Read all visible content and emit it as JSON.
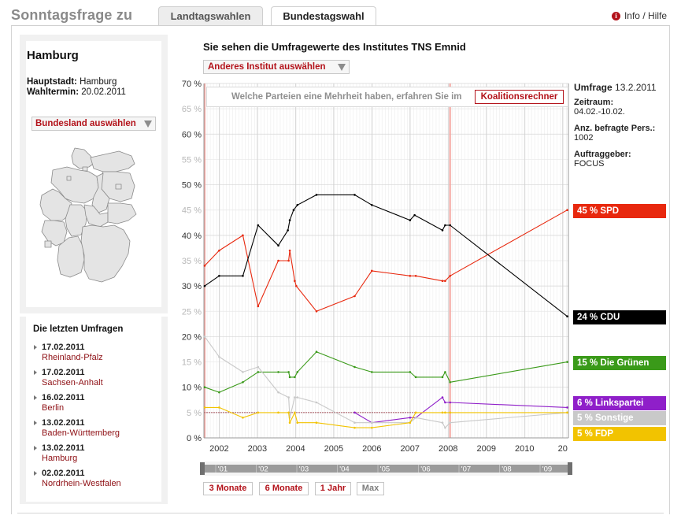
{
  "header": {
    "app_title": "Sonntagsfrage zu",
    "tabs": [
      {
        "label": "Landtagswahlen",
        "active": false
      },
      {
        "label": "Bundestagswahl",
        "active": true
      }
    ],
    "info_link": "Info / Hilfe",
    "info_icon": "i"
  },
  "state": {
    "name": "Hamburg",
    "capital_label": "Hauptstadt:",
    "capital_value": "Hamburg",
    "election_label": "Wahltermin:",
    "election_value": "20.02.2011",
    "select_label": "Bundesland auswählen",
    "map_icon": "germany-map-icon"
  },
  "recent_polls": {
    "title": "Die letzten Umfragen",
    "items": [
      {
        "date": "17.02.2011",
        "state": "Rheinland-Pfalz"
      },
      {
        "date": "17.02.2011",
        "state": "Sachsen-Anhalt"
      },
      {
        "date": "16.02.2011",
        "state": "Berlin"
      },
      {
        "date": "13.02.2011",
        "state": "Baden-Württemberg"
      },
      {
        "date": "13.02.2011",
        "state": "Hamburg"
      },
      {
        "date": "02.02.2011",
        "state": "Nordrhein-Westfalen"
      }
    ]
  },
  "main": {
    "heading": "Sie sehen die Umfragewerte des Institutes TNS Emnid",
    "institute_select": "Anderes Institut auswählen",
    "coalition_text": "Welche Parteien eine Mehrheit haben, erfahren Sie im",
    "coalition_button": "Koalitionsrechner"
  },
  "poll_info": {
    "survey_label": "Umfrage",
    "survey_date": "13.2.2011",
    "period_label": "Zeitraum:",
    "period_value": "04.02.-10.02.",
    "respondents_label": "Anz. befragte Pers.:",
    "respondents_value": "1002",
    "client_label": "Auftraggeber:",
    "client_value": "FOCUS"
  },
  "party_labels": [
    {
      "text": "45 % SPD",
      "color": "#e8280e"
    },
    {
      "text": "24 % CDU",
      "color": "#000000"
    },
    {
      "text": "15 % Die Grünen",
      "color": "#3a9a19"
    },
    {
      "text": "6 % Linkspartei",
      "color": "#8f1fc9"
    },
    {
      "text": "5 % Sonstige",
      "color": "#c9c9c9"
    },
    {
      "text": "5 % FDP",
      "color": "#f2c300"
    }
  ],
  "range_buttons": [
    "3 Monate",
    "6 Monate",
    "1 Jahr",
    "Max"
  ],
  "chart_data": {
    "type": "line",
    "ylim": [
      0,
      70
    ],
    "y_ticks": [
      "0 %",
      "5 %",
      "10 %",
      "15 %",
      "20 %",
      "25 %",
      "30 %",
      "35 %",
      "40 %",
      "45 %",
      "50 %",
      "55 %",
      "60 %",
      "65 %",
      "70 %"
    ],
    "x_ticks": [
      "2002",
      "2003",
      "2004",
      "2005",
      "2006",
      "2007",
      "2008",
      "2009",
      "2010",
      "20"
    ],
    "overview_ticks": [
      "'01",
      "'02",
      "'03",
      "'04",
      "'05",
      "'06",
      "'07",
      "'08",
      "'09"
    ],
    "xlim": [
      2001.6,
      2011.15
    ],
    "majority_line_y": 5,
    "series": [
      {
        "name": "SPD",
        "color": "#e8280e",
        "points": [
          [
            2001.62,
            34
          ],
          [
            2002.0,
            37
          ],
          [
            2002.62,
            40
          ],
          [
            2003.02,
            26
          ],
          [
            2003.55,
            35
          ],
          [
            2003.82,
            35
          ],
          [
            2003.85,
            37
          ],
          [
            2003.98,
            31
          ],
          [
            2004.02,
            30
          ],
          [
            2004.55,
            25
          ],
          [
            2005.55,
            28
          ],
          [
            2006.0,
            33
          ],
          [
            2007.0,
            32
          ],
          [
            2007.15,
            32
          ],
          [
            2007.85,
            31
          ],
          [
            2007.92,
            31
          ],
          [
            2008.05,
            32
          ],
          [
            2011.12,
            45
          ]
        ]
      },
      {
        "name": "CDU",
        "color": "#000000",
        "points": [
          [
            2001.62,
            30
          ],
          [
            2002.0,
            32
          ],
          [
            2002.62,
            32
          ],
          [
            2003.02,
            42
          ],
          [
            2003.55,
            38
          ],
          [
            2003.8,
            41
          ],
          [
            2003.85,
            43
          ],
          [
            2003.95,
            45
          ],
          [
            2004.05,
            46
          ],
          [
            2004.55,
            48
          ],
          [
            2005.55,
            48
          ],
          [
            2006.0,
            46
          ],
          [
            2007.0,
            43
          ],
          [
            2007.12,
            44
          ],
          [
            2007.85,
            41
          ],
          [
            2007.92,
            42
          ],
          [
            2008.05,
            42
          ],
          [
            2011.12,
            24
          ]
        ]
      },
      {
        "name": "Die Grünen",
        "color": "#3a9a19",
        "points": [
          [
            2001.62,
            10
          ],
          [
            2002.0,
            9
          ],
          [
            2002.62,
            11
          ],
          [
            2003.02,
            13
          ],
          [
            2003.55,
            13
          ],
          [
            2003.82,
            13
          ],
          [
            2003.85,
            12
          ],
          [
            2003.98,
            12
          ],
          [
            2004.05,
            13
          ],
          [
            2004.55,
            17
          ],
          [
            2005.55,
            14
          ],
          [
            2006.0,
            13
          ],
          [
            2007.0,
            13
          ],
          [
            2007.15,
            12
          ],
          [
            2007.85,
            12
          ],
          [
            2007.92,
            13
          ],
          [
            2008.05,
            11
          ],
          [
            2011.12,
            15
          ]
        ]
      },
      {
        "name": "Linkspartei",
        "color": "#8f1fc9",
        "points": [
          [
            2005.55,
            5
          ],
          [
            2006.0,
            3
          ],
          [
            2007.0,
            4
          ],
          [
            2007.15,
            4
          ],
          [
            2007.85,
            8
          ],
          [
            2007.92,
            7
          ],
          [
            2008.05,
            7
          ],
          [
            2011.12,
            6
          ]
        ]
      },
      {
        "name": "Sonstige",
        "color": "#c9c9c9",
        "points": [
          [
            2001.62,
            20
          ],
          [
            2002.0,
            16
          ],
          [
            2002.62,
            13
          ],
          [
            2003.02,
            14
          ],
          [
            2003.55,
            9
          ],
          [
            2003.82,
            8
          ],
          [
            2003.85,
            4
          ],
          [
            2003.98,
            8
          ],
          [
            2004.05,
            8
          ],
          [
            2004.55,
            7
          ],
          [
            2005.55,
            3
          ],
          [
            2006.0,
            3
          ],
          [
            2007.0,
            3
          ],
          [
            2007.15,
            4
          ],
          [
            2007.85,
            3
          ],
          [
            2007.92,
            2
          ],
          [
            2008.05,
            3
          ],
          [
            2011.12,
            5
          ]
        ]
      },
      {
        "name": "FDP",
        "color": "#f2c300",
        "points": [
          [
            2001.62,
            6
          ],
          [
            2002.0,
            6
          ],
          [
            2002.62,
            4
          ],
          [
            2003.02,
            5
          ],
          [
            2003.55,
            5
          ],
          [
            2003.82,
            5
          ],
          [
            2003.85,
            3
          ],
          [
            2003.98,
            5
          ],
          [
            2004.05,
            3
          ],
          [
            2004.55,
            3
          ],
          [
            2005.55,
            2
          ],
          [
            2006.0,
            2
          ],
          [
            2007.0,
            3
          ],
          [
            2007.15,
            5
          ],
          [
            2007.85,
            5
          ],
          [
            2007.92,
            5
          ],
          [
            2008.05,
            5
          ],
          [
            2011.12,
            5
          ]
        ]
      }
    ]
  }
}
